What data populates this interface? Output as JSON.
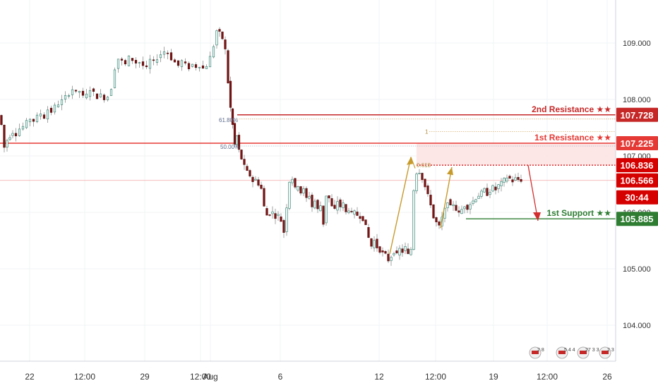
{
  "chart_data": {
    "type": "candlestick",
    "title": "",
    "xlabel": "",
    "ylabel": "",
    "ylim": [
      103.4,
      109.8
    ],
    "y_ticks": [
      {
        "value": 109.0,
        "label": "109.000"
      },
      {
        "value": 108.0,
        "label": "108.000"
      },
      {
        "value": 107.0,
        "label": "107.000"
      },
      {
        "value": 106.0,
        "label": "106.000"
      },
      {
        "value": 105.0,
        "label": "105.000"
      },
      {
        "value": 104.0,
        "label": "104.000"
      }
    ],
    "x_ticks": [
      "22",
      "12:00",
      "29",
      "12:00",
      "Aug",
      "6",
      "12",
      "12:00",
      "19",
      "12:00",
      "26"
    ],
    "levels": [
      {
        "name": "2nd Resistance",
        "label": "2nd Resistance ★★",
        "value": 107.728,
        "price_label": "107.728",
        "color": "#c62828"
      },
      {
        "name": "1st Resistance",
        "label": "1st Resistance ★★",
        "value": 107.225,
        "price_label": "107.225",
        "color": "#e53935"
      },
      {
        "name": "1st Support",
        "label": "1st Support ★★",
        "value": 105.885,
        "price_label": "105.885",
        "color": "#2e7d32"
      }
    ],
    "price_tags": [
      {
        "value": 106.836,
        "label": "106.836",
        "color": "#d50000"
      },
      {
        "value": 106.566,
        "label": "106.566",
        "color": "#d50000"
      },
      {
        "value": 106.35,
        "label": "30:44",
        "color": "#d50000"
      }
    ],
    "fib_labels": [
      {
        "label": "61.80%",
        "value": 107.728
      },
      {
        "label": "50.00%",
        "value": 107.225
      },
      {
        "label": "0.618",
        "value": 106.836
      },
      {
        "label": "1",
        "value": 107.43
      }
    ],
    "colors": {
      "up": "#26a69a",
      "down": "#ef5350",
      "body": "#2e2e2e",
      "wick": "#8a8a8a"
    },
    "event_icons": [
      {
        "text": "2 8"
      },
      {
        "text": "5 4 4"
      },
      {
        "text": "27 3 3"
      },
      {
        "text": "2 3"
      }
    ],
    "ohlc_path": [
      [
        0,
        107.72
      ],
      [
        4,
        107.55
      ],
      [
        8,
        107.15
      ],
      [
        12,
        107.28
      ],
      [
        16,
        107.35
      ],
      [
        20,
        107.42
      ],
      [
        25,
        107.38
      ],
      [
        30,
        107.48
      ],
      [
        35,
        107.52
      ],
      [
        40,
        107.6
      ],
      [
        45,
        107.66
      ],
      [
        50,
        107.62
      ],
      [
        55,
        107.7
      ],
      [
        60,
        107.75
      ],
      [
        65,
        107.68
      ],
      [
        70,
        107.82
      ],
      [
        75,
        107.78
      ],
      [
        80,
        107.88
      ],
      [
        85,
        107.92
      ],
      [
        90,
        107.98
      ],
      [
        95,
        108.05
      ],
      [
        100,
        108.1
      ],
      [
        105,
        108.18
      ],
      [
        110,
        108.12
      ],
      [
        115,
        108.15
      ],
      [
        120,
        108.05
      ],
      [
        125,
        108.08
      ],
      [
        130,
        108.18
      ],
      [
        135,
        108.12
      ],
      [
        140,
        108.04
      ],
      [
        145,
        108.08
      ],
      [
        150,
        108.02
      ],
      [
        155,
        108.05
      ],
      [
        160,
        108.2
      ],
      [
        165,
        108.55
      ],
      [
        170,
        108.72
      ],
      [
        175,
        108.68
      ],
      [
        180,
        108.62
      ],
      [
        185,
        108.75
      ],
      [
        190,
        108.7
      ],
      [
        195,
        108.65
      ],
      [
        200,
        108.66
      ],
      [
        205,
        108.6
      ],
      [
        210,
        108.55
      ],
      [
        215,
        108.7
      ],
      [
        220,
        108.66
      ],
      [
        225,
        108.73
      ],
      [
        230,
        108.8
      ],
      [
        235,
        108.85
      ],
      [
        240,
        108.82
      ],
      [
        245,
        108.72
      ],
      [
        250,
        108.66
      ],
      [
        255,
        108.6
      ],
      [
        260,
        108.68
      ],
      [
        265,
        108.62
      ],
      [
        270,
        108.56
      ],
      [
        275,
        108.62
      ],
      [
        280,
        108.58
      ],
      [
        285,
        108.6
      ],
      [
        290,
        108.55
      ],
      [
        295,
        108.6
      ],
      [
        300,
        108.75
      ],
      [
        305,
        108.95
      ],
      [
        309,
        109.22
      ],
      [
        313,
        109.18
      ],
      [
        317,
        109.08
      ],
      [
        321,
        108.88
      ],
      [
        325,
        108.3
      ],
      [
        328,
        107.85
      ],
      [
        331,
        107.55
      ],
      [
        334,
        107.2
      ],
      [
        337,
        107.35
      ],
      [
        340,
        107.1
      ],
      [
        344,
        106.95
      ],
      [
        348,
        106.82
      ],
      [
        352,
        106.72
      ],
      [
        356,
        106.65
      ],
      [
        360,
        106.55
      ],
      [
        364,
        106.58
      ],
      [
        368,
        106.5
      ],
      [
        372,
        106.42
      ],
      [
        376,
        106.1
      ],
      [
        380,
        105.95
      ],
      [
        384,
        105.98
      ],
      [
        388,
        106.0
      ],
      [
        392,
        105.92
      ],
      [
        396,
        105.95
      ],
      [
        400,
        105.85
      ],
      [
        404,
        105.65
      ],
      [
        408,
        106.1
      ],
      [
        412,
        106.55
      ],
      [
        416,
        106.6
      ],
      [
        420,
        106.42
      ],
      [
        424,
        106.48
      ],
      [
        428,
        106.35
      ],
      [
        432,
        106.4
      ],
      [
        436,
        106.25
      ],
      [
        440,
        106.3
      ],
      [
        444,
        106.1
      ],
      [
        448,
        106.2
      ],
      [
        452,
        106.05
      ],
      [
        456,
        106.12
      ],
      [
        460,
        105.8
      ],
      [
        464,
        106.3
      ],
      [
        468,
        106.25
      ],
      [
        472,
        106.1
      ],
      [
        476,
        106.05
      ],
      [
        480,
        106.2
      ],
      [
        484,
        106.1
      ],
      [
        488,
        106.15
      ],
      [
        492,
        106.0
      ],
      [
        496,
        106.05
      ],
      [
        500,
        105.98
      ],
      [
        504,
        106.0
      ],
      [
        508,
        105.95
      ],
      [
        512,
        105.92
      ],
      [
        516,
        105.88
      ],
      [
        520,
        105.75
      ],
      [
        524,
        105.55
      ],
      [
        528,
        105.4
      ],
      [
        532,
        105.5
      ],
      [
        536,
        105.38
      ],
      [
        540,
        105.32
      ],
      [
        544,
        105.28
      ],
      [
        548,
        105.25
      ],
      [
        552,
        105.15
      ],
      [
        556,
        105.22
      ],
      [
        560,
        105.3
      ],
      [
        564,
        105.25
      ],
      [
        568,
        105.35
      ],
      [
        572,
        105.3
      ],
      [
        576,
        105.38
      ],
      [
        580,
        105.25
      ],
      [
        584,
        105.35
      ],
      [
        588,
        106.4
      ],
      [
        592,
        106.7
      ],
      [
        596,
        106.72
      ],
      [
        600,
        106.6
      ],
      [
        604,
        106.45
      ],
      [
        608,
        106.3
      ],
      [
        612,
        106.15
      ],
      [
        616,
        105.9
      ],
      [
        620,
        105.82
      ],
      [
        624,
        105.75
      ],
      [
        628,
        105.9
      ],
      [
        632,
        106.05
      ],
      [
        636,
        106.2
      ],
      [
        640,
        106.1
      ],
      [
        644,
        106.15
      ],
      [
        648,
        106.05
      ],
      [
        652,
        105.98
      ],
      [
        656,
        106.05
      ],
      [
        660,
        106.12
      ],
      [
        664,
        106.08
      ],
      [
        668,
        106.15
      ],
      [
        672,
        106.2
      ],
      [
        676,
        106.25
      ],
      [
        680,
        106.3
      ],
      [
        684,
        106.35
      ],
      [
        688,
        106.4
      ],
      [
        692,
        106.32
      ],
      [
        696,
        106.38
      ],
      [
        700,
        106.45
      ],
      [
        704,
        106.4
      ],
      [
        708,
        106.48
      ],
      [
        712,
        106.52
      ],
      [
        716,
        106.58
      ],
      [
        720,
        106.62
      ],
      [
        724,
        106.6
      ],
      [
        728,
        106.55
      ],
      [
        732,
        106.6
      ],
      [
        736,
        106.58
      ],
      [
        740,
        106.566
      ]
    ]
  }
}
